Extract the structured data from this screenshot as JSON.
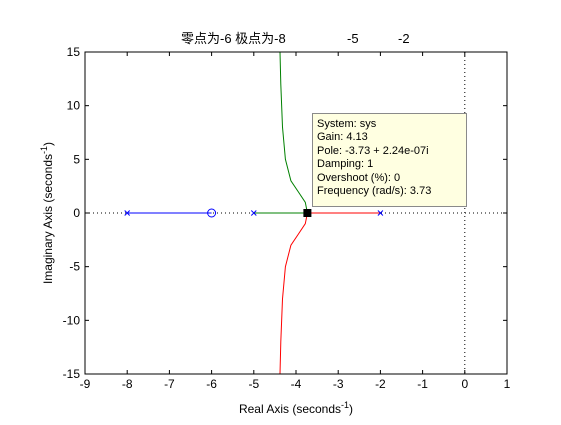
{
  "chart_data": {
    "type": "line",
    "title": {
      "main": "零点为-6  极点为-8",
      "extra": [
        "-5",
        "-2"
      ]
    },
    "xlabel": {
      "text": "Real Axis (seconds",
      "sup": "-1",
      "close": ")"
    },
    "ylabel": {
      "text": "Imaginary Axis (seconds",
      "sup": "-1",
      "close": ")"
    },
    "xlim": [
      -9,
      1
    ],
    "ylim": [
      -15,
      15
    ],
    "xticks": [
      -9,
      -8,
      -7,
      -6,
      -5,
      -4,
      -3,
      -2,
      -1,
      0,
      1
    ],
    "yticks": [
      -15,
      -10,
      -5,
      0,
      5,
      10,
      15
    ],
    "grid": false,
    "zeros": [
      [
        -6,
        0
      ]
    ],
    "poles": [
      [
        -8,
        0
      ],
      [
        -5,
        0
      ],
      [
        -2,
        0
      ]
    ],
    "branches": [
      {
        "color": "#0000ff",
        "points": [
          [
            -8,
            0
          ],
          [
            -6,
            0
          ]
        ]
      },
      {
        "color": "#008000",
        "points": [
          [
            -5,
            0
          ],
          [
            -3.73,
            0
          ]
        ]
      },
      {
        "color": "#ff0000",
        "points": [
          [
            -2,
            0
          ],
          [
            -3.73,
            0
          ]
        ]
      },
      {
        "color": "#008000",
        "points": [
          [
            -3.73,
            0
          ],
          [
            -3.78,
            1.0
          ],
          [
            -3.95,
            2.0
          ],
          [
            -4.12,
            3.0
          ],
          [
            -4.25,
            5.0
          ],
          [
            -4.32,
            8.0
          ],
          [
            -4.36,
            12.0
          ],
          [
            -4.38,
            15.0
          ]
        ]
      },
      {
        "color": "#ff0000",
        "points": [
          [
            -3.73,
            0
          ],
          [
            -3.78,
            -1.0
          ],
          [
            -3.95,
            -2.0
          ],
          [
            -4.12,
            -3.0
          ],
          [
            -4.25,
            -5.0
          ],
          [
            -4.32,
            -8.0
          ],
          [
            -4.36,
            -12.0
          ],
          [
            -4.38,
            -15.0
          ]
        ]
      }
    ],
    "selected_point": [
      -3.73,
      0
    ]
  },
  "datatip": {
    "lines": [
      "System: sys",
      "Gain: 4.13",
      "Pole: -3.73 + 2.24e-07i",
      "Damping: 1",
      "Overshoot (%): 0",
      "Frequency (rad/s): 3.73"
    ]
  }
}
